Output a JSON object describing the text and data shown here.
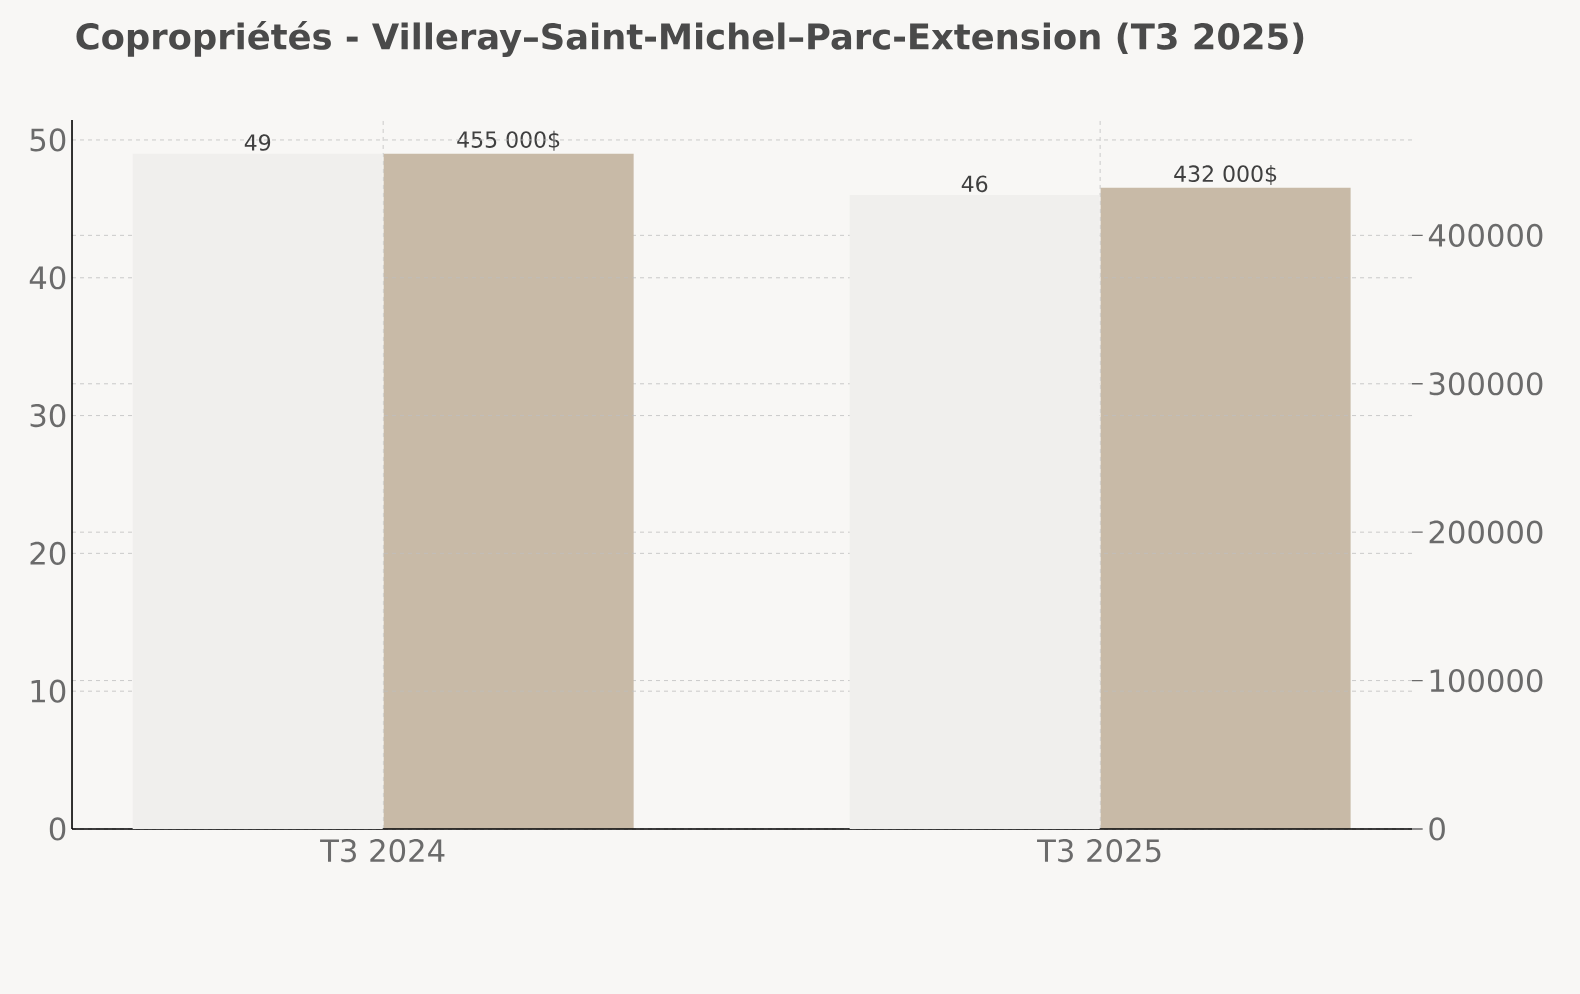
{
  "chart_data": {
    "type": "bar",
    "title": "Copropriétés - Villeray–Saint-Michel–Parc-Extension (T3 2025)",
    "categories": [
      "T3 2024",
      "T3 2025"
    ],
    "series": [
      {
        "color": "#f0efed",
        "values": [
          49,
          46
        ],
        "value_labels": [
          "49",
          "46"
        ]
      },
      {
        "color": "#c8baa7",
        "values": [
          455000,
          432000
        ],
        "axis": "y2",
        "value_labels": [
          "455 000$",
          "432 000$"
        ]
      }
    ],
    "ylim": [
      0,
      51.45
    ],
    "yticks": [
      0,
      10,
      20,
      30,
      40,
      50
    ],
    "y2lim": [
      0,
      477750
    ],
    "y2ticks": [
      0,
      100000,
      200000,
      300000,
      400000
    ],
    "grid": true
  }
}
